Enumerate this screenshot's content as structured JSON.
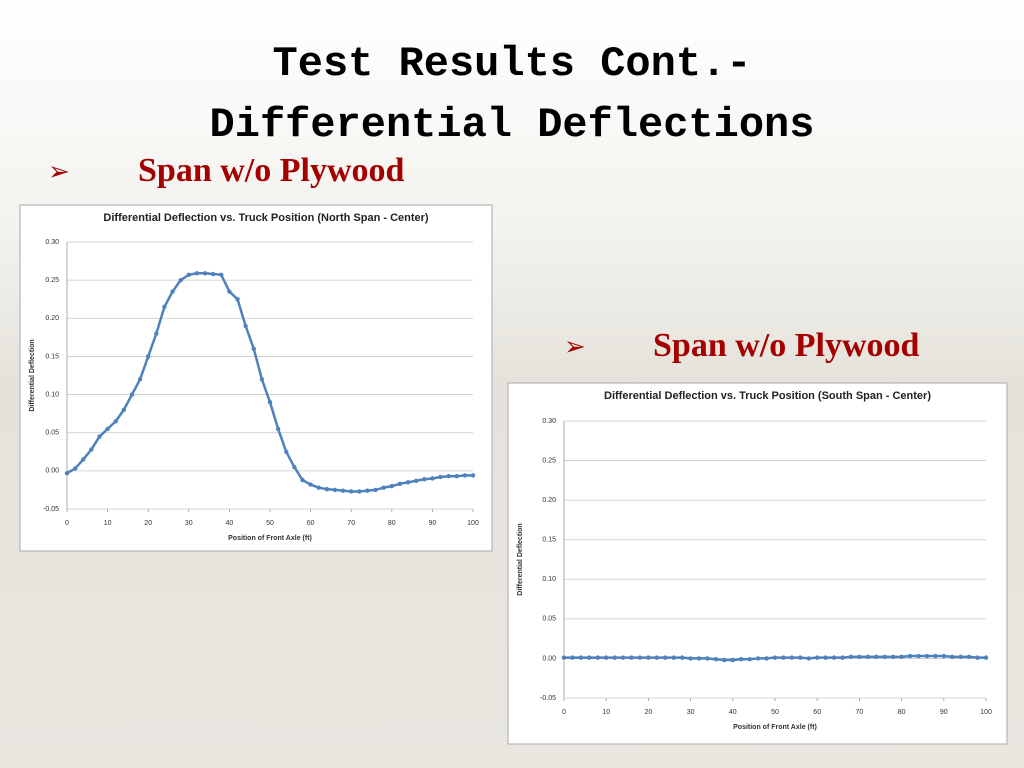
{
  "title": [
    "Test Results Cont.-",
    "Differential Deflections"
  ],
  "bullets": [
    "Span w/o Plywood",
    "Span w/o Plywood"
  ],
  "chart_data": [
    {
      "type": "line",
      "title": "Differential Deflection vs. Truck Position (North Span - Center)",
      "x_label": "Position of Front Axle (ft)",
      "y_label": "Differential Deflection",
      "x": [
        0,
        2,
        4,
        6,
        8,
        10,
        12,
        14,
        16,
        18,
        20,
        22,
        24,
        26,
        28,
        30,
        32,
        34,
        36,
        38,
        40,
        42,
        44,
        46,
        48,
        50,
        52,
        54,
        56,
        58,
        60,
        62,
        64,
        66,
        68,
        70,
        72,
        74,
        76,
        78,
        80,
        82,
        84,
        86,
        88,
        90,
        92,
        94,
        96,
        98,
        100
      ],
      "series": [
        {
          "color": "#4f81bd",
          "values": [
            -0.003,
            0.003,
            0.015,
            0.028,
            0.045,
            0.055,
            0.065,
            0.08,
            0.1,
            0.12,
            0.15,
            0.18,
            0.215,
            0.235,
            0.25,
            0.257,
            0.259,
            0.259,
            0.258,
            0.257,
            0.235,
            0.225,
            0.19,
            0.16,
            0.12,
            0.09,
            0.055,
            0.025,
            0.005,
            -0.012,
            -0.018,
            -0.022,
            -0.024,
            -0.025,
            -0.026,
            -0.027,
            -0.027,
            -0.026,
            -0.025,
            -0.022,
            -0.02,
            -0.017,
            -0.015,
            -0.013,
            -0.011,
            -0.01,
            -0.008,
            -0.007,
            -0.007,
            -0.006,
            -0.006
          ]
        }
      ],
      "xlim": [
        0,
        100
      ],
      "xticks": [
        0,
        10,
        20,
        30,
        40,
        50,
        60,
        70,
        80,
        90,
        100
      ],
      "ylim": [
        -0.05,
        0.3
      ],
      "yticks": [
        {
          "value": -0.05,
          "label": "-0.05"
        },
        {
          "value": 0,
          "label": "0.00"
        },
        {
          "value": 0.05,
          "label": "0.05"
        },
        {
          "value": 0.1,
          "label": "0.10"
        },
        {
          "value": 0.15,
          "label": "0.15"
        },
        {
          "value": 0.2,
          "label": "0.20"
        },
        {
          "value": 0.25,
          "label": "0.25"
        },
        {
          "value": 0.3,
          "label": "0.30"
        }
      ],
      "grid": true
    },
    {
      "type": "line",
      "title": "Differential Deflection vs. Truck Position (South Span - Center)",
      "x_label": "Position of Front Axle (ft)",
      "y_label": "Differential Deflection",
      "x": [
        0,
        2,
        4,
        6,
        8,
        10,
        12,
        14,
        16,
        18,
        20,
        22,
        24,
        26,
        28,
        30,
        32,
        34,
        36,
        38,
        40,
        42,
        44,
        46,
        48,
        50,
        52,
        54,
        56,
        58,
        60,
        62,
        64,
        66,
        68,
        70,
        72,
        74,
        76,
        78,
        80,
        82,
        84,
        86,
        88,
        90,
        92,
        94,
        96,
        98,
        100
      ],
      "series": [
        {
          "color": "#4f81bd",
          "values": [
            0.001,
            0.001,
            0.001,
            0.001,
            0.001,
            0.001,
            0.001,
            0.001,
            0.001,
            0.001,
            0.001,
            0.001,
            0.001,
            0.001,
            0.001,
            0,
            0,
            0,
            -0.001,
            -0.002,
            -0.002,
            -0.001,
            -0.001,
            0,
            0,
            0.001,
            0.001,
            0.001,
            0.001,
            0,
            0.001,
            0.001,
            0.001,
            0.001,
            0.002,
            0.002,
            0.002,
            0.002,
            0.002,
            0.002,
            0.002,
            0.003,
            0.003,
            0.003,
            0.003,
            0.003,
            0.002,
            0.002,
            0.002,
            0.001,
            0.001
          ]
        }
      ],
      "xlim": [
        0,
        100
      ],
      "xticks": [
        0,
        10,
        20,
        30,
        40,
        50,
        60,
        70,
        80,
        90,
        100
      ],
      "ylim": [
        -0.05,
        0.3
      ],
      "yticks": [
        {
          "value": -0.05,
          "label": "-0.05"
        },
        {
          "value": 0,
          "label": "0.00"
        },
        {
          "value": 0.05,
          "label": "0.05"
        },
        {
          "value": 0.1,
          "label": "0.10"
        },
        {
          "value": 0.15,
          "label": "0.15"
        },
        {
          "value": 0.2,
          "label": "0.20"
        },
        {
          "value": 0.25,
          "label": "0.25"
        },
        {
          "value": 0.3,
          "label": "0.30"
        }
      ],
      "grid": true
    }
  ]
}
